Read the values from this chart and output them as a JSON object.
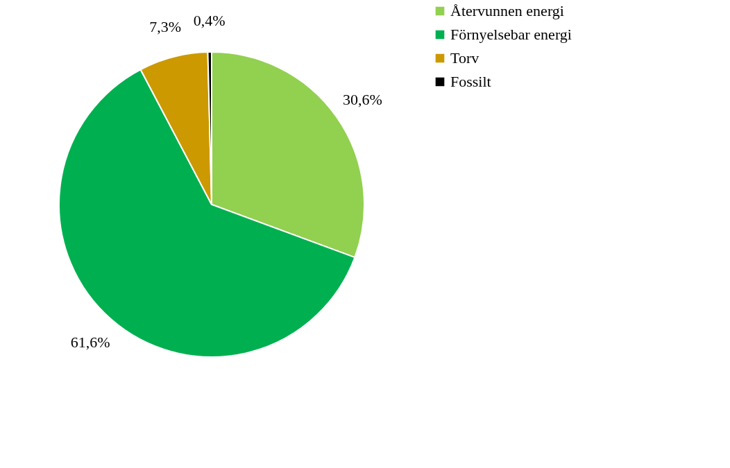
{
  "chart_data": {
    "type": "pie",
    "categories": [
      "Återvunnen energi",
      "Förnyelsebar energi",
      "Torv",
      "Fossilt"
    ],
    "values": [
      30.6,
      61.6,
      7.3,
      0.4
    ],
    "colors": [
      "#92d050",
      "#00b050",
      "#cc9900",
      "#000000"
    ],
    "value_labels": [
      "30,6%",
      "61,6%",
      "7,3%",
      "0,4%"
    ],
    "legend": "right"
  }
}
